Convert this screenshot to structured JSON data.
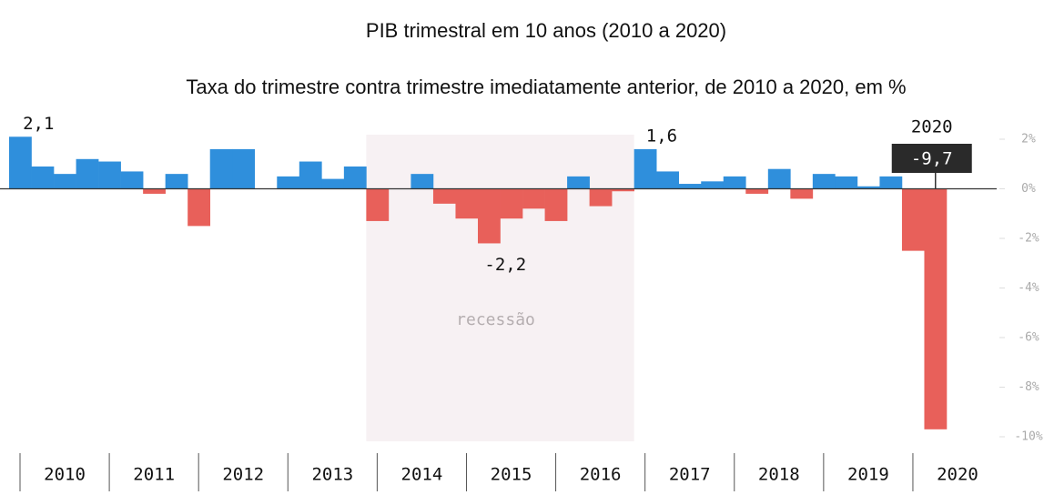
{
  "chart_data": {
    "type": "bar",
    "title": "PIB trimestral em 10 anos (2010 a 2020)",
    "subtitle": "Taxa do trimestre contra trimestre imediatamente anterior, de 2010 a 2020, em %",
    "groups": [
      "2010",
      "2011",
      "2012",
      "2013",
      "2014",
      "2015",
      "2016",
      "2017",
      "2018",
      "2019",
      "2020"
    ],
    "values": [
      2.1,
      0.9,
      0.6,
      1.2,
      1.1,
      0.7,
      -0.2,
      0.6,
      -1.5,
      1.6,
      1.6,
      0.0,
      0.5,
      1.1,
      0.4,
      0.9,
      -1.3,
      0.0,
      0.6,
      -0.6,
      -1.2,
      -2.2,
      -1.2,
      -0.8,
      -1.3,
      0.5,
      -0.7,
      -0.1,
      1.6,
      0.7,
      0.2,
      0.3,
      0.5,
      -0.2,
      0.8,
      -0.4,
      0.6,
      0.5,
      0.1,
      0.5,
      -2.5,
      -9.7
    ],
    "value_labels": [
      "2,1",
      null,
      null,
      null,
      null,
      null,
      null,
      null,
      null,
      null,
      null,
      null,
      null,
      null,
      null,
      null,
      null,
      null,
      null,
      null,
      null,
      "-2,2",
      null,
      null,
      null,
      null,
      null,
      null,
      "1,6",
      null,
      null,
      null,
      null,
      null,
      null,
      null,
      null,
      null,
      null,
      null,
      null,
      "-9,7"
    ],
    "callout_title": "2020",
    "positive_color": "#2f8fdc",
    "negative_color": "#e8605a",
    "recession": {
      "label": "recessão",
      "from": "2014",
      "to": "2016"
    },
    "ylim": [
      -10,
      2
    ],
    "yticks": [
      {
        "value": 2,
        "label": "2%"
      },
      {
        "value": 0,
        "label": "0%"
      },
      {
        "value": -2,
        "label": "-2%"
      },
      {
        "value": -4,
        "label": "-4%"
      },
      {
        "value": -6,
        "label": "-6%"
      },
      {
        "value": -8,
        "label": "-8%"
      },
      {
        "value": -10,
        "label": "-10%"
      }
    ]
  }
}
